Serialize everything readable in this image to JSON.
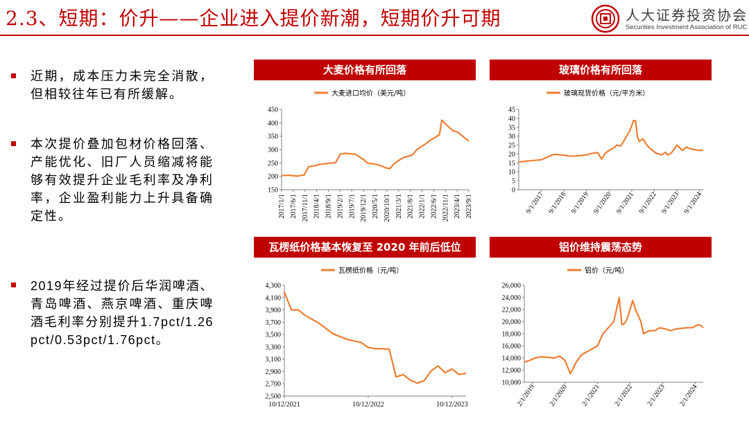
{
  "header": {
    "title": "2.3、短期：价升——企业进入提价新潮，短期价升可期",
    "org_cn": "人大证券投资协会",
    "org_en": "Securities Investment Association of RUC",
    "accent": "#c00000",
    "line_color": "#ed7d31"
  },
  "bullets": [
    {
      "text": "近期，成本压力未完全消散，但相较往年已有所缓解。"
    },
    {
      "text": "本次提价叠加包材价格回落、产能优化、旧厂人员缩减将能够有效提升企业毛利率及净利率，企业盈利能力上升具备确定性。"
    },
    {
      "text": "2019年经过提价后华润啤酒、青岛啤酒、燕京啤酒、重庆啤酒毛利率分别提升1.7pct/1.26pct/0.53pct/1.76pct。"
    }
  ],
  "chart_data": [
    {
      "type": "line",
      "title": "大麦价格有所回落",
      "series": [
        {
          "name": "大麦进口均价（美元/吨）"
        }
      ],
      "x_ticks": [
        "2017/1/1",
        "2017/6/1",
        "2017/11/1",
        "2018/4/1",
        "2018/9/1",
        "2019/2/1",
        "2019/7/1",
        "2019/12/1",
        "2020/5/1",
        "2020/10/1",
        "2021/3/1",
        "2021/8/1",
        "2022/1/1",
        "2022/6/1",
        "2022/11/1",
        "2023/4/1",
        "2023/9/1"
      ],
      "y_ticks": [
        "150",
        "200",
        "250",
        "300",
        "350",
        "400",
        "450"
      ],
      "ylim": [
        150,
        450
      ],
      "x": [
        "2017-01",
        "2017-04",
        "2017-08",
        "2017-10",
        "2017-11",
        "2018-01",
        "2018-04",
        "2018-06",
        "2018-09",
        "2018-12",
        "2019-01",
        "2019-03",
        "2019-05",
        "2019-08",
        "2019-10",
        "2019-12",
        "2020-01",
        "2020-03",
        "2020-05",
        "2020-07",
        "2020-09",
        "2020-11",
        "2021-01",
        "2021-03",
        "2021-05",
        "2021-07",
        "2021-09",
        "2021-11",
        "2022-01",
        "2022-03",
        "2022-05",
        "2022-07",
        "2022-09",
        "2022-11",
        "2022-12",
        "2023-01",
        "2023-03",
        "2023-05",
        "2023-07",
        "2023-09",
        "2023-11",
        "2023-12"
      ],
      "values": [
        203,
        204,
        201,
        204,
        205,
        236,
        240,
        245,
        248,
        250,
        252,
        283,
        286,
        284,
        282,
        270,
        265,
        250,
        247,
        245,
        240,
        232,
        229,
        248,
        260,
        270,
        275,
        280,
        300,
        312,
        322,
        335,
        345,
        356,
        410,
        402,
        385,
        370,
        365,
        352,
        338,
        332
      ]
    },
    {
      "type": "line",
      "title": "玻璃价格有所回落",
      "series": [
        {
          "name": "玻璃现货价格（元/平方米）"
        }
      ],
      "x_ticks": [
        "9/1/2017",
        "9/1/2018",
        "9/1/2019",
        "9/1/2020",
        "9/1/2021",
        "9/1/2022",
        "9/1/2023",
        "9/1/2024"
      ],
      "y_ticks": [
        "0",
        "5",
        "10",
        "15",
        "20",
        "25",
        "30",
        "35",
        "40",
        "45"
      ],
      "ylim": [
        0,
        45
      ],
      "x": [
        "2016-09",
        "2017-03",
        "2017-09",
        "2017-12",
        "2018-03",
        "2018-05",
        "2018-09",
        "2018-12",
        "2019-03",
        "2019-06",
        "2019-09",
        "2019-12",
        "2020-03",
        "2020-05",
        "2020-07",
        "2020-09",
        "2020-12",
        "2021-01",
        "2021-03",
        "2021-05",
        "2021-06",
        "2021-08",
        "2021-09",
        "2021-10",
        "2021-11",
        "2021-12",
        "2022-01",
        "2022-03",
        "2022-05",
        "2022-08",
        "2022-10",
        "2023-01",
        "2023-03",
        "2023-04",
        "2023-06",
        "2023-09",
        "2023-12",
        "2024-02",
        "2024-04",
        "2024-06",
        "2024-09",
        "2024-11"
      ],
      "values": [
        15.5,
        16.2,
        16.8,
        18.2,
        19.6,
        19.8,
        19.3,
        18.8,
        18.9,
        19.2,
        19.5,
        20.4,
        20.8,
        17.2,
        20.5,
        22,
        23.8,
        25,
        24.5,
        27.5,
        29.5,
        33,
        36,
        38.7,
        38.8,
        30,
        27,
        28.5,
        25,
        22,
        20.5,
        19.5,
        21,
        19.5,
        20.5,
        25,
        22,
        23.8,
        23,
        22.5,
        22,
        22.3
      ]
    },
    {
      "type": "line",
      "title": "瓦楞纸价格基本恢复至 2020 年前后低位",
      "series": [
        {
          "name": "瓦楞纸价格（元/吨）"
        }
      ],
      "x_ticks": [
        "10/12/2021",
        "10/12/2022",
        "10/12/2023"
      ],
      "y_ticks": [
        "2,500",
        "2,700",
        "2,900",
        "3,100",
        "3,300",
        "3,500",
        "3,700",
        "3,900",
        "4,100",
        "4,300"
      ],
      "ylim": [
        2500,
        4300
      ],
      "x": [
        "2021-10",
        "2021-11",
        "2021-12",
        "2022-01",
        "2022-03",
        "2022-05",
        "2022-07",
        "2022-09",
        "2022-10",
        "2022-11",
        "2022-12",
        "2023-01",
        "2023-02",
        "2023-03",
        "2023-04",
        "2023-05",
        "2023-06",
        "2023-07",
        "2023-08",
        "2023-09",
        "2023-10",
        "2023-11",
        "2023-12"
      ],
      "values": [
        4190,
        3900,
        3900,
        3810,
        3680,
        3510,
        3420,
        3370,
        3290,
        3270,
        3270,
        3260,
        2810,
        2850,
        2760,
        2710,
        2750,
        2910,
        2990,
        2880,
        2940,
        2850,
        2870
      ]
    },
    {
      "type": "line",
      "title": "铝价维持震荡态势",
      "series": [
        {
          "name": "铝价（元/吨）"
        }
      ],
      "x_ticks": [
        "2/1/2019",
        "2/1/2020",
        "2/1/2021",
        "2/1/2022",
        "2/1/2023",
        "2/1/2024"
      ],
      "y_ticks": [
        "10,000",
        "12,000",
        "14,000",
        "16,000",
        "18,000",
        "20,000",
        "22,000",
        "24,000",
        "26,000"
      ],
      "ylim": [
        10000,
        26000
      ],
      "x": [
        "2018-11",
        "2019-01",
        "2019-03",
        "2019-05",
        "2019-08",
        "2019-10",
        "2019-12",
        "2020-02",
        "2020-04",
        "2020-06",
        "2020-08",
        "2020-10",
        "2020-12",
        "2021-02",
        "2021-04",
        "2021-06",
        "2021-08",
        "2021-10",
        "2021-11",
        "2021-12",
        "2022-01",
        "2022-03",
        "2022-04",
        "2022-06",
        "2022-07",
        "2022-09",
        "2022-11",
        "2023-01",
        "2023-03",
        "2023-05",
        "2023-07",
        "2023-09",
        "2023-11",
        "2024-01",
        "2024-03",
        "2024-04",
        "2024-05"
      ],
      "values": [
        13300,
        13600,
        14000,
        14200,
        14100,
        14000,
        14300,
        13600,
        11400,
        13200,
        14500,
        15000,
        15500,
        16000,
        18000,
        19000,
        20000,
        24000,
        19500,
        19700,
        20500,
        23500,
        22000,
        20000,
        18000,
        18500,
        18500,
        19000,
        18800,
        18500,
        18800,
        18900,
        19000,
        19000,
        19500,
        19400,
        19000
      ]
    }
  ]
}
